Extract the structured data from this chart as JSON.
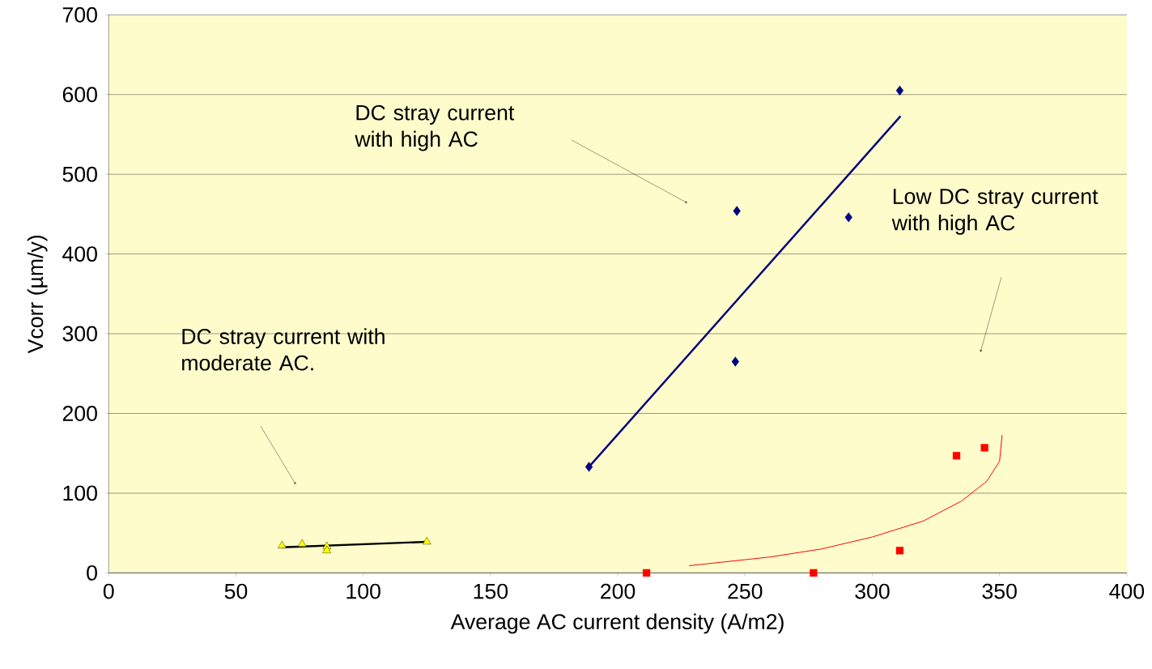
{
  "chart_data": {
    "type": "scatter",
    "xlabel": "Average AC current density (A/m2)",
    "ylabel": "Vcorr (µm/y)",
    "xlim": [
      0,
      400
    ],
    "ylim": [
      0,
      700
    ],
    "xticks": [
      0,
      50,
      100,
      150,
      200,
      250,
      300,
      350,
      400
    ],
    "yticks": [
      0,
      100,
      200,
      300,
      400,
      500,
      600,
      700
    ],
    "grid": "y",
    "series": [
      {
        "marker": "diamond",
        "color": "#000080",
        "x": [
          188.7,
          246.8,
          246.2,
          290.7,
          310.8
        ],
        "values": [
          133,
          454,
          265,
          446,
          605
        ]
      },
      {
        "type": "line",
        "marker": "none",
        "color": "#000080",
        "x": [
          188.7,
          311.1
        ],
        "values": [
          133,
          573
        ]
      },
      {
        "marker": "triangle",
        "color": "#ffff00",
        "x": [
          68.1,
          76,
          85.7,
          85.7,
          125
        ],
        "values": [
          34,
          36,
          33,
          28,
          39
        ]
      },
      {
        "type": "line",
        "marker": "none",
        "color": "#000000",
        "x": [
          68,
          125
        ],
        "values": [
          32,
          39
        ]
      },
      {
        "marker": "square",
        "color": "#ff0000",
        "x": [
          211.3,
          276.9,
          310.8,
          333.1,
          344.1
        ],
        "values": [
          0,
          0,
          28,
          147,
          157
        ]
      },
      {
        "type": "line",
        "marker": "none",
        "color": "#ff0000",
        "x": [
          228,
          260,
          280,
          300,
          320,
          335,
          345,
          350,
          351
        ],
        "values": [
          9,
          20,
          30,
          45,
          65,
          90,
          115,
          140,
          173
        ]
      }
    ],
    "annotations": [
      "DC stray current with high AC",
      "Low DC stray current with high AC",
      "DC stray current with moderate AC."
    ]
  }
}
